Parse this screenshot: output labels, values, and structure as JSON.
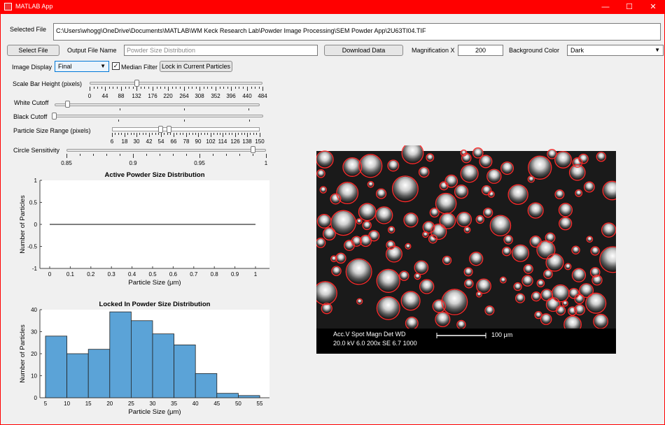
{
  "window": {
    "title": "MATLAB App",
    "min": "—",
    "max": "☐",
    "close": "✕"
  },
  "file": {
    "label": "Selected File",
    "path": "C:\\Users\\whogg\\OneDrive\\Documents\\MATLAB\\WM Keck Research Lab\\Powder Image Processing\\SEM Powder App\\2U63TI04.TIF"
  },
  "toolbar": {
    "select_file": "Select File",
    "output_label": "Output File Name",
    "output_placeholder": "Powder Size Distribution",
    "download": "Download Data",
    "mag_label": "Magnification X",
    "mag_value": "200",
    "bg_label": "Background Color",
    "bg_value": "Dark"
  },
  "display": {
    "label": "Image Display",
    "value": "Final",
    "median_label": "Median Filter",
    "median_checked": true,
    "lock_button": "Lock in Current Particles"
  },
  "sliders": {
    "scale_bar": {
      "label": "Scale Bar Height (pixels)",
      "value": 132,
      "min": 0,
      "max": 484,
      "ticks": [
        "0",
        "44",
        "88",
        "132",
        "176",
        "220",
        "264",
        "308",
        "352",
        "396",
        "440",
        "484"
      ]
    },
    "white_cutoff": {
      "label": "White Cutoff",
      "value": 0.08
    },
    "black_cutoff": {
      "label": "Black Cutoff",
      "value": 0.0
    },
    "size_range": {
      "label": "Particle Size Range (pixels)",
      "low": 54,
      "high": 60,
      "min": 6,
      "max": 150,
      "ticks": [
        "6",
        "18",
        "30",
        "42",
        "54",
        "66",
        "78",
        "90",
        "102",
        "114",
        "126",
        "138",
        "150"
      ]
    },
    "circle_sens": {
      "label": "Circle Sensitivity",
      "value": 0.99,
      "min": 0.85,
      "max": 1,
      "ticks": [
        "0.85",
        "0.9",
        "0.95",
        "1"
      ]
    }
  },
  "chart_data": [
    {
      "type": "line",
      "title": "Active Powder Size Distribution",
      "xlabel": "Particle Size (μm)",
      "ylabel": "Number of Particles",
      "xlim": [
        0,
        1
      ],
      "ylim": [
        -1,
        1
      ],
      "xticks": [
        "0",
        "0.1",
        "0.2",
        "0.3",
        "0.4",
        "0.5",
        "0.6",
        "0.7",
        "0.8",
        "0.9",
        "1"
      ],
      "yticks": [
        "1",
        "0.5",
        "0",
        "-0.5",
        "-1"
      ],
      "x": [
        0,
        1
      ],
      "y": [
        0,
        0
      ]
    },
    {
      "type": "bar",
      "title": "Locked In Powder Size Distribution",
      "xlabel": "Particle Size (μm)",
      "ylabel": "Number of Particles",
      "xlim": [
        5,
        55
      ],
      "ylim": [
        0,
        40
      ],
      "xticks": [
        "5",
        "10",
        "15",
        "20",
        "25",
        "30",
        "35",
        "40",
        "45",
        "50",
        "55"
      ],
      "yticks": [
        "40",
        "30",
        "20",
        "10",
        "0"
      ],
      "bin_edges": [
        5,
        10,
        15,
        20,
        25,
        30,
        35,
        40,
        45,
        50,
        55
      ],
      "values": [
        28,
        20,
        22,
        39,
        35,
        29,
        24,
        11,
        2,
        1
      ],
      "color": "#5ba3d7"
    }
  ],
  "sem": {
    "overlay": {
      "row1": "Acc.V   Spot Magn    Det  WD",
      "row2": "20.0 kV 6.0   200x     SE   6.7    1000",
      "scale": "100 μm"
    },
    "circle_color": "#ff2a2a"
  }
}
